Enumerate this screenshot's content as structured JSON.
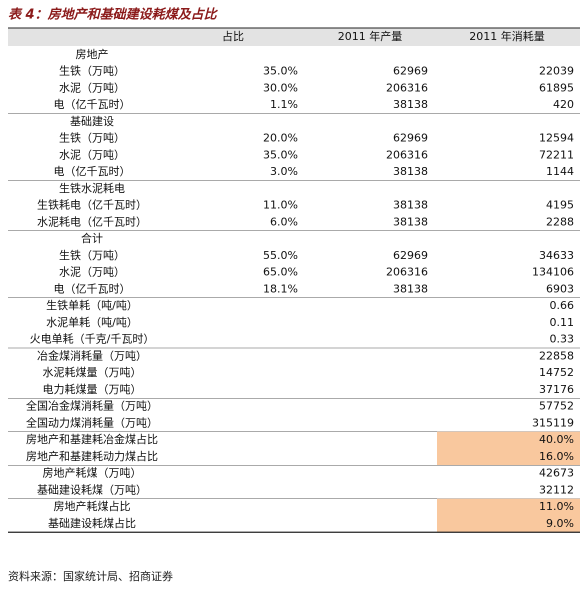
{
  "title": "表 4：房地产和基础建设耗煤及占比",
  "table": {
    "header": [
      "占比",
      "2011 年产量",
      "2011 年消耗量"
    ],
    "groups": [
      [
        [
          "房地产",
          null,
          null,
          null
        ],
        [
          "生铁（万吨）",
          "35.0%",
          "62969",
          "22039"
        ],
        [
          "水泥（万吨）",
          "30.0%",
          "206316",
          "61895"
        ],
        [
          "电（亿千瓦时）",
          "1.1%",
          "38138",
          "420"
        ]
      ],
      [
        [
          "基础建设",
          null,
          null,
          null
        ],
        [
          "生铁（万吨）",
          "20.0%",
          "62969",
          "12594"
        ],
        [
          "水泥（万吨）",
          "35.0%",
          "206316",
          "72211"
        ],
        [
          "电（亿千瓦时）",
          "3.0%",
          "38138",
          "1144"
        ]
      ],
      [
        [
          "生铁水泥耗电",
          null,
          null,
          null
        ],
        [
          "生铁耗电（亿千瓦时）",
          "11.0%",
          "38138",
          "4195"
        ],
        [
          "水泥耗电（亿千瓦时）",
          "6.0%",
          "38138",
          "2288"
        ]
      ],
      [
        [
          "合计",
          null,
          null,
          null
        ],
        [
          "生铁（万吨）",
          "55.0%",
          "62969",
          "34633"
        ],
        [
          "水泥（万吨）",
          "65.0%",
          "206316",
          "134106"
        ],
        [
          "电（亿千瓦时）",
          "18.1%",
          "38138",
          "6903"
        ]
      ],
      [
        [
          "生铁单耗（吨/吨）",
          null,
          null,
          "0.66"
        ],
        [
          "水泥单耗（吨/吨）",
          null,
          null,
          "0.11"
        ],
        [
          "火电单耗（千克/千瓦时）",
          null,
          null,
          "0.33"
        ]
      ],
      [
        [
          "冶金煤消耗量（万吨）",
          null,
          null,
          "22858"
        ],
        [
          "水泥耗煤量（万吨）",
          null,
          null,
          "14752"
        ],
        [
          "电力耗煤量（万吨）",
          null,
          null,
          "37176"
        ]
      ],
      [
        [
          "全国冶金煤消耗量（万吨）",
          null,
          null,
          "57752"
        ],
        [
          "全国动力煤消耗量（万吨）",
          null,
          null,
          "315119"
        ]
      ],
      [
        [
          "房地产和基建耗冶金煤占比",
          null,
          null,
          "40.0%"
        ],
        [
          "房地产和基建耗动力煤占比",
          null,
          null,
          "16.0%"
        ]
      ],
      [
        [
          "房地产耗煤（万吨）",
          null,
          null,
          "42673"
        ],
        [
          "基础建设耗煤（万吨）",
          null,
          null,
          "32112"
        ]
      ],
      [
        [
          "房地产耗煤占比",
          null,
          null,
          "11.0%"
        ],
        [
          "基础建设耗煤占比",
          null,
          null,
          "9.0%"
        ]
      ]
    ]
  },
  "source": "资料来源：国家统计局、招商证券"
}
